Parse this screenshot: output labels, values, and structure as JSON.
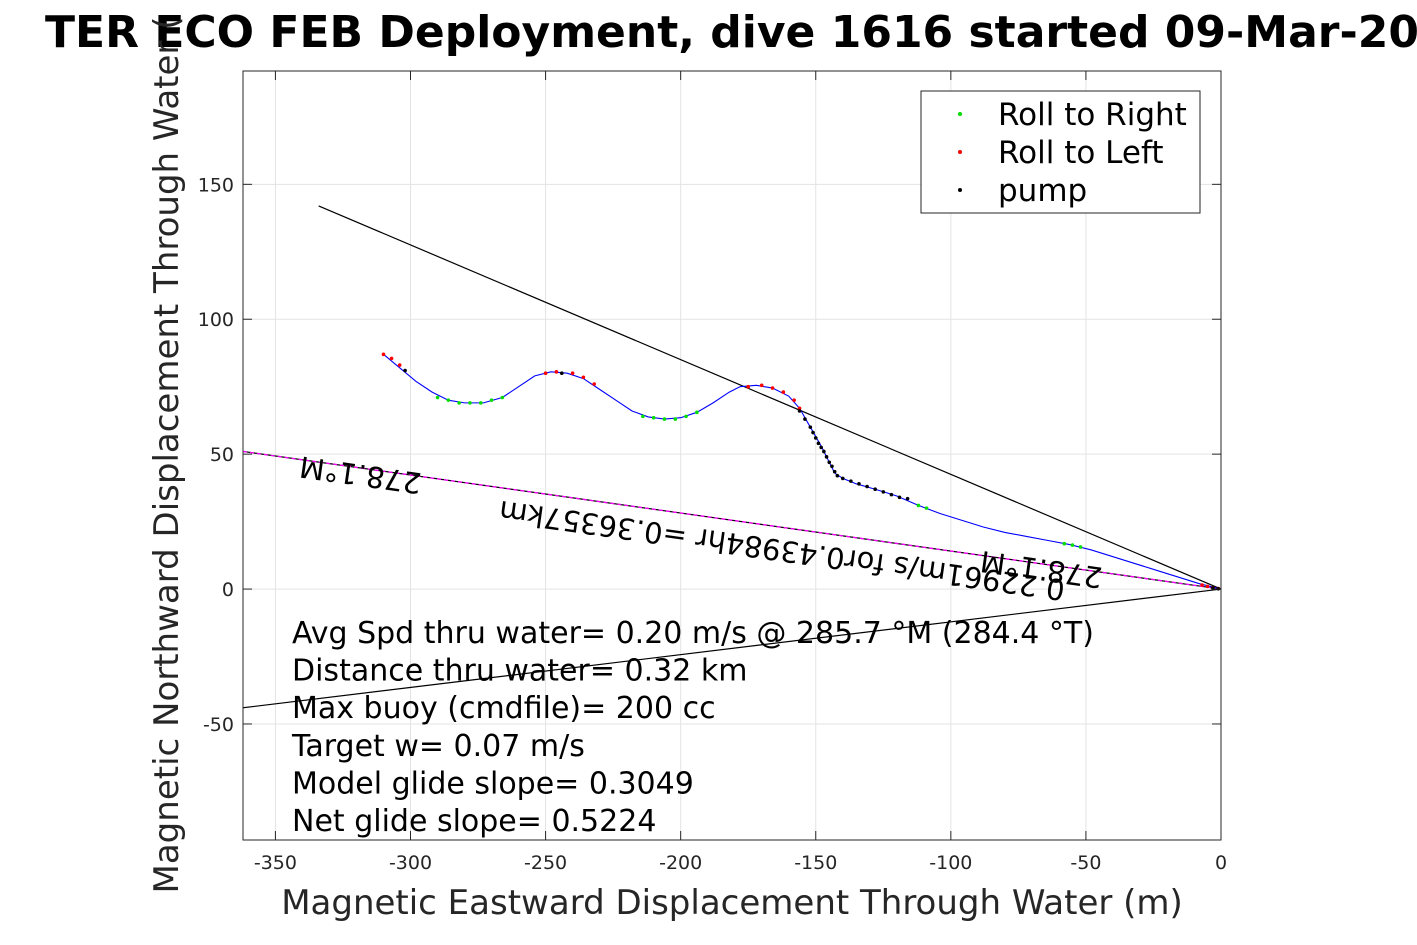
{
  "chart_data": {
    "type": "scatter",
    "title": "TER ECO FEB Deployment, dive 1616 started 09-Mar-20",
    "xlabel": "Magnetic Eastward Displacement Through Water (m)",
    "ylabel": "Magnetic Northward Displacement Through Water (",
    "xlim": [
      -362,
      0
    ],
    "ylim": [
      -93,
      192
    ],
    "x_ticks": [
      -350,
      -300,
      -250,
      -200,
      -150,
      -100,
      -50,
      0
    ],
    "y_ticks": [
      -50,
      0,
      50,
      100,
      150
    ],
    "grid": true,
    "legend": {
      "placement": "top-right",
      "entries": [
        {
          "label": "Roll to Right",
          "color": "#00dd00"
        },
        {
          "label": "Roll to Left",
          "color": "#ff0000"
        },
        {
          "label": "pump",
          "color": "#000000"
        }
      ]
    },
    "track": {
      "color": "#0000ff",
      "points": [
        [
          -310,
          87
        ],
        [
          -304,
          82
        ],
        [
          -298,
          77
        ],
        [
          -292,
          73
        ],
        [
          -286,
          70
        ],
        [
          -280,
          69
        ],
        [
          -273,
          69
        ],
        [
          -266,
          71
        ],
        [
          -260,
          75
        ],
        [
          -254,
          79
        ],
        [
          -248,
          80.5
        ],
        [
          -242,
          80
        ],
        [
          -236,
          78
        ],
        [
          -230,
          74
        ],
        [
          -224,
          70
        ],
        [
          -218,
          66
        ],
        [
          -212,
          63.8
        ],
        [
          -206,
          63
        ],
        [
          -200,
          63.5
        ],
        [
          -194,
          65.5
        ],
        [
          -188,
          69
        ],
        [
          -182,
          73
        ],
        [
          -178,
          75
        ],
        [
          -172,
          75.5
        ],
        [
          -166,
          74.5
        ],
        [
          -160,
          71.5
        ],
        [
          -156,
          67
        ],
        [
          -152,
          60
        ],
        [
          -148,
          53
        ],
        [
          -145,
          47
        ],
        [
          -143,
          43
        ],
        [
          -140,
          41
        ],
        [
          -135,
          39
        ],
        [
          -128,
          37
        ],
        [
          -120,
          34.5
        ],
        [
          -112,
          31
        ],
        [
          -104,
          28
        ],
        [
          -96,
          25.5
        ],
        [
          -88,
          23
        ],
        [
          -80,
          21
        ],
        [
          -72,
          19.5
        ],
        [
          -64,
          18
        ],
        [
          -56,
          16.5
        ],
        [
          -48,
          14.5
        ],
        [
          -40,
          12
        ],
        [
          -32,
          9.5
        ],
        [
          -24,
          7
        ],
        [
          -16,
          4.5
        ],
        [
          -8,
          2
        ],
        [
          0,
          0
        ]
      ]
    },
    "roll_right": [
      [
        -290,
        71
      ],
      [
        -286,
        70
      ],
      [
        -282,
        69
      ],
      [
        -278,
        69
      ],
      [
        -274,
        69
      ],
      [
        -270,
        70
      ],
      [
        -266,
        71
      ],
      [
        -214,
        64
      ],
      [
        -210,
        63.5
      ],
      [
        -206,
        63
      ],
      [
        -202,
        63
      ],
      [
        -198,
        64
      ],
      [
        -194,
        65.5
      ],
      [
        -112,
        31
      ],
      [
        -109,
        30
      ],
      [
        -58,
        16.8
      ],
      [
        -55,
        16.3
      ],
      [
        -52,
        15.6
      ]
    ],
    "roll_left": [
      [
        -310,
        87
      ],
      [
        -307,
        85.5
      ],
      [
        -304,
        83
      ],
      [
        -250,
        80
      ],
      [
        -246,
        80.5
      ],
      [
        -240,
        80
      ],
      [
        -236,
        78.5
      ],
      [
        -232,
        76
      ],
      [
        -175,
        75
      ],
      [
        -170,
        75.5
      ],
      [
        -166,
        74.5
      ],
      [
        -162,
        73
      ],
      [
        -158,
        70
      ],
      [
        -156,
        67
      ],
      [
        -7,
        1.5
      ],
      [
        -5,
        1
      ],
      [
        -3,
        0.5
      ],
      [
        -1,
        0.2
      ]
    ],
    "pump": [
      [
        -302,
        81
      ],
      [
        -244,
        80
      ],
      [
        -156,
        66
      ],
      [
        -154,
        63
      ],
      [
        -152,
        60
      ],
      [
        -151,
        58
      ],
      [
        -150,
        56
      ],
      [
        -149,
        54
      ],
      [
        -148,
        52.5
      ],
      [
        -147,
        51
      ],
      [
        -146,
        49
      ],
      [
        -145,
        47
      ],
      [
        -144,
        45.5
      ],
      [
        -143,
        43.5
      ],
      [
        -142,
        42
      ],
      [
        -140,
        41
      ],
      [
        -137,
        40
      ],
      [
        -134,
        39
      ],
      [
        -131,
        38
      ],
      [
        -128,
        37
      ],
      [
        -125,
        36
      ],
      [
        -122,
        35
      ],
      [
        -119,
        34
      ],
      [
        -116,
        33.5
      ],
      [
        -3,
        0.4
      ],
      [
        -1,
        0.1
      ]
    ],
    "lines": [
      {
        "name": "heading-line-upper",
        "color": "#000000",
        "points": [
          [
            -334,
            142
          ],
          [
            0,
            0
          ]
        ]
      },
      {
        "name": "heading-line-278",
        "color": "#000000",
        "points": [
          [
            -362,
            51
          ],
          [
            0,
            0
          ]
        ]
      },
      {
        "name": "heading-line-278-magenta",
        "color": "#ff00ff",
        "dashed": true,
        "points": [
          [
            -362,
            51
          ],
          [
            0,
            0
          ]
        ]
      },
      {
        "name": "heading-line-lower",
        "color": "#000000",
        "points": [
          [
            -362,
            -44
          ],
          [
            0,
            0
          ]
        ]
      }
    ],
    "rotated_annotations": [
      {
        "text": "278.1°M",
        "x": -318,
        "y": 46,
        "angle": 188
      },
      {
        "text": "0.22961m/s for0.43984hr =0.36357km",
        "x": -162,
        "y": 18,
        "angle": 188
      },
      {
        "text": "278.1°M",
        "x": -66,
        "y": 11,
        "angle": 188
      }
    ],
    "stats": [
      "Avg Spd thru water=  0.20 m/s @ 285.7 °M (284.4 °T)",
      "Distance thru water=  0.32 km",
      "Max buoy (cmdfile)= 200 cc",
      "Target w= 0.07 m/s",
      "Model glide slope= 0.3049",
      "Net glide slope= 0.5224"
    ]
  }
}
